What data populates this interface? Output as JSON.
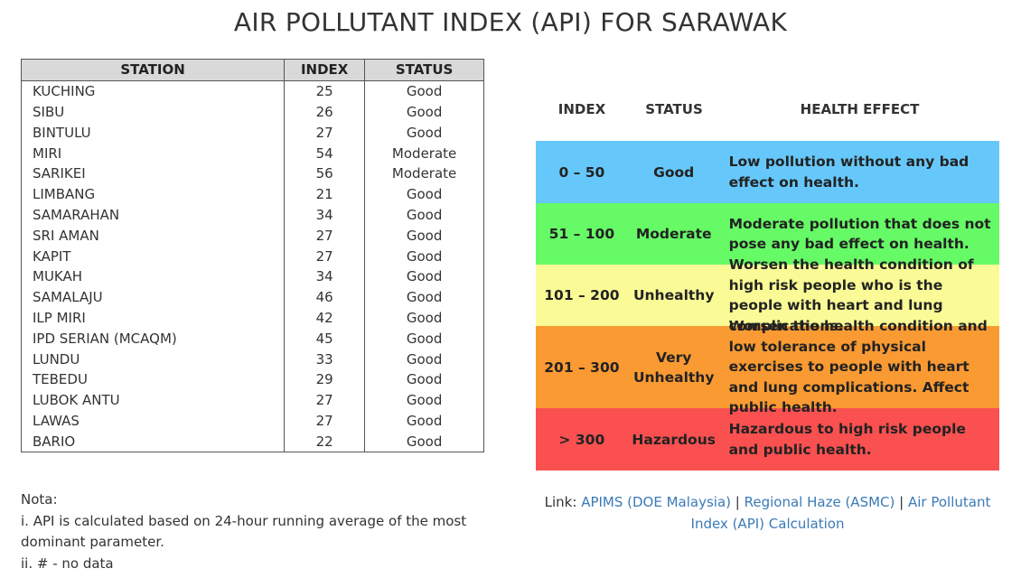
{
  "title": "AIR POLLUTANT INDEX (API) FOR SARAWAK",
  "station_table": {
    "headers": [
      "STATION",
      "INDEX",
      "STATUS"
    ],
    "rows": [
      {
        "station": "KUCHING",
        "index": "25",
        "status": "Good"
      },
      {
        "station": "SIBU",
        "index": "26",
        "status": "Good"
      },
      {
        "station": "BINTULU",
        "index": "27",
        "status": "Good"
      },
      {
        "station": "MIRI",
        "index": "54",
        "status": "Moderate"
      },
      {
        "station": "SARIKEI",
        "index": "56",
        "status": "Moderate"
      },
      {
        "station": "LIMBANG",
        "index": "21",
        "status": "Good"
      },
      {
        "station": "SAMARAHAN",
        "index": "34",
        "status": "Good"
      },
      {
        "station": "SRI AMAN",
        "index": "27",
        "status": "Good"
      },
      {
        "station": "KAPIT",
        "index": "27",
        "status": "Good"
      },
      {
        "station": "MUKAH",
        "index": "34",
        "status": "Good"
      },
      {
        "station": "SAMALAJU",
        "index": "46",
        "status": "Good"
      },
      {
        "station": "ILP MIRI",
        "index": "42",
        "status": "Good"
      },
      {
        "station": "IPD SERIAN (MCAQM)",
        "index": "45",
        "status": "Good"
      },
      {
        "station": "LUNDU",
        "index": "33",
        "status": "Good"
      },
      {
        "station": "TEBEDU",
        "index": "29",
        "status": "Good"
      },
      {
        "station": "LUBOK ANTU",
        "index": "27",
        "status": "Good"
      },
      {
        "station": "LAWAS",
        "index": "27",
        "status": "Good"
      },
      {
        "station": "BARIO",
        "index": "22",
        "status": "Good"
      }
    ]
  },
  "legend": {
    "headers": {
      "index": "INDEX",
      "status": "STATUS",
      "effect": "HEALTH EFFECT"
    },
    "rows": [
      {
        "index": "0 – 50",
        "status": "Good",
        "effect": "Low pollution without any bad effect on health.",
        "color": "#66c8fa"
      },
      {
        "index": "51 – 100",
        "status": "Moderate",
        "effect": "Moderate pollution that does not pose any bad effect on health.",
        "color": "#66fa66"
      },
      {
        "index": "101 – 200",
        "status": "Unhealthy",
        "effect": "Worsen the health condition of high risk people who is the people with heart and lung complications.",
        "color": "#fafa96"
      },
      {
        "index": "201 – 300",
        "status": "Very Unhealthy",
        "effect": "Worsen the health condition and low tolerance of physical exercises to people with heart and lung complications. Affect public health.",
        "color": "#fa9a32"
      },
      {
        "index": "> 300",
        "status": "Hazardous",
        "effect": "Hazardous to high risk people and public health.",
        "color": "#fa5050"
      }
    ]
  },
  "notes": {
    "heading": "Nota:",
    "line1a": "i. API is calculated based on 24-hour running average of the most",
    "line1b": "dominant parameter.",
    "line2": "ii. # - no data"
  },
  "links": {
    "prefix": "Link:",
    "separator": "|",
    "items": [
      "APIMS (DOE Malaysia)",
      "Regional Haze (ASMC)",
      "Air Pollutant Index (API) Calculation"
    ]
  }
}
